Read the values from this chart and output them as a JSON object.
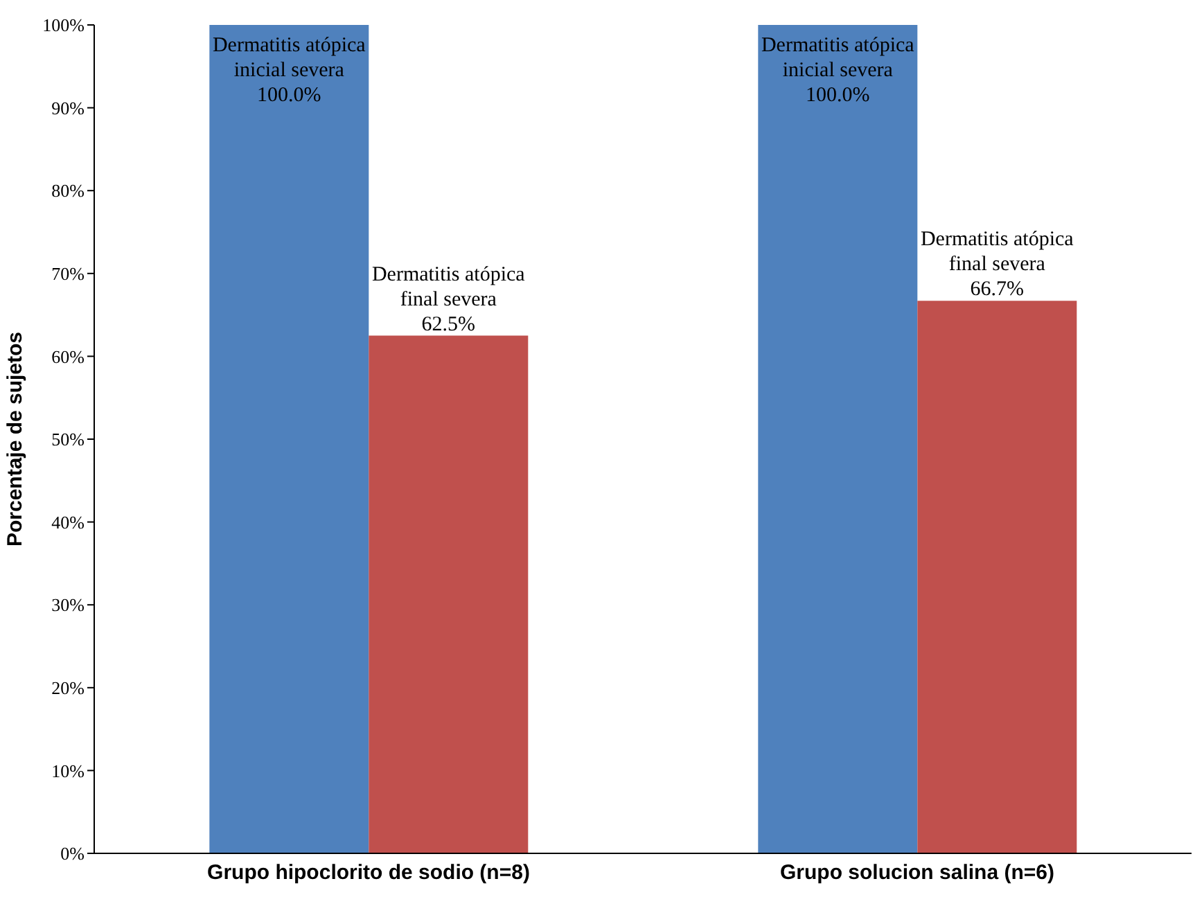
{
  "chart_data": {
    "type": "bar",
    "ylabel": "Porcentaje de sujetos",
    "categories": [
      "Grupo hipoclorito de sodio (n=8)",
      "Grupo solucion salina (n=6)"
    ],
    "series": [
      {
        "name": "Dermatitis atópica inicial severa",
        "color": "#4f81bd",
        "values": [
          100,
          100
        ],
        "value_labels": [
          "100.0%",
          "100.0%"
        ]
      },
      {
        "name": "Dermatitis atópica final severa",
        "color": "#c0504d",
        "values": [
          62.5,
          66.7
        ],
        "value_labels": [
          "62.5%",
          "66.7%"
        ]
      }
    ],
    "ylim": [
      0,
      100
    ],
    "yticks": [
      {
        "value": 0,
        "label": "0%"
      },
      {
        "value": 10,
        "label": "10%"
      },
      {
        "value": 20,
        "label": "20%"
      },
      {
        "value": 30,
        "label": "30%"
      },
      {
        "value": 40,
        "label": "40%"
      },
      {
        "value": 50,
        "label": "50%"
      },
      {
        "value": 60,
        "label": "60%"
      },
      {
        "value": 70,
        "label": "70%"
      },
      {
        "value": 80,
        "label": "80%"
      },
      {
        "value": 90,
        "label": "90%"
      },
      {
        "value": 100,
        "label": "100%"
      }
    ],
    "grid": false,
    "legend": false
  }
}
